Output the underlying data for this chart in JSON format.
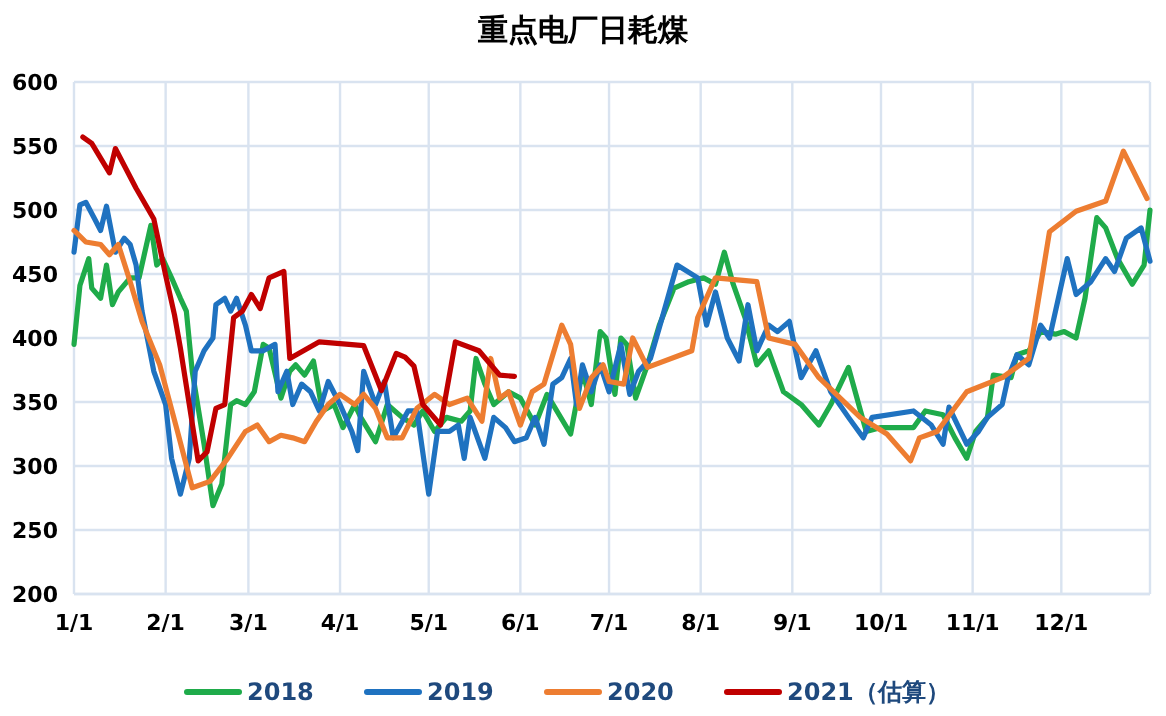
{
  "chart_data": {
    "type": "line",
    "title": "重点电厂日耗煤",
    "ylim": [
      200,
      600
    ],
    "yticks": [
      200,
      250,
      300,
      350,
      400,
      450,
      500,
      550,
      600
    ],
    "xlim": [
      "--01-01",
      "--12-31"
    ],
    "xticks": [
      {
        "value": "--01-01",
        "label": "1/1"
      },
      {
        "value": "--02-01",
        "label": "2/1"
      },
      {
        "value": "--03-01",
        "label": "3/1"
      },
      {
        "value": "--04-01",
        "label": "4/1"
      },
      {
        "value": "--05-01",
        "label": "5/1"
      },
      {
        "value": "--06-01",
        "label": "6/1"
      },
      {
        "value": "--07-01",
        "label": "7/1"
      },
      {
        "value": "--08-01",
        "label": "8/1"
      },
      {
        "value": "--09-01",
        "label": "9/1"
      },
      {
        "value": "--10-01",
        "label": "10/1"
      },
      {
        "value": "--11-01",
        "label": "11/1"
      },
      {
        "value": "--12-01",
        "label": "12/1"
      }
    ],
    "grid": true,
    "legend": "bottom",
    "series": [
      {
        "name": "2018",
        "color": "#1fab4a",
        "x": [
          "--01-01",
          "--01-03",
          "--01-06",
          "--01-07",
          "--01-10",
          "--01-12",
          "--01-14",
          "--01-16",
          "--01-20",
          "--01-23",
          "--01-27",
          "--01-29",
          "--01-31",
          "--02-03",
          "--02-06",
          "--02-08",
          "--02-10",
          "--02-14",
          "--02-17",
          "--02-20",
          "--02-23",
          "--02-25",
          "--02-28",
          "--03-03",
          "--03-06",
          "--03-08",
          "--03-12",
          "--03-15",
          "--03-17",
          "--03-20",
          "--03-23",
          "--03-26",
          "--03-30",
          "--04-02",
          "--04-06",
          "--04-08",
          "--04-13",
          "--04-17",
          "--04-22",
          "--04-26",
          "--04-29",
          "--05-03",
          "--05-07",
          "--05-12",
          "--05-15",
          "--05-17",
          "--05-20",
          "--05-23",
          "--05-28",
          "--06-01",
          "--06-06",
          "--06-10",
          "--06-18",
          "--06-22",
          "--06-25",
          "--06-28",
          "--06-30",
          "--07-03",
          "--07-05",
          "--07-07",
          "--07-10",
          "--07-14",
          "--07-18",
          "--07-23",
          "--07-28",
          "--08-02",
          "--08-06",
          "--08-09",
          "--08-12",
          "--08-16",
          "--08-20",
          "--08-24",
          "--08-29",
          "--09-04",
          "--09-10",
          "--09-14",
          "--09-20",
          "--09-26",
          "--10-01",
          "--10-12",
          "--10-16",
          "--10-22",
          "--10-26",
          "--10-30",
          "--11-02",
          "--11-06",
          "--11-08",
          "--11-14",
          "--11-16",
          "--11-20",
          "--11-24",
          "--11-29",
          "--12-02",
          "--12-06",
          "--12-09",
          "--12-13",
          "--12-16",
          "--12-20",
          "--12-25",
          "--12-29",
          "--12-31"
        ],
        "values": [
          395,
          441,
          462,
          439,
          431,
          457,
          426,
          436,
          447,
          447,
          488,
          457,
          462,
          447,
          431,
          421,
          374,
          317,
          269,
          286,
          348,
          351,
          348,
          358,
          395,
          392,
          353,
          374,
          379,
          371,
          382,
          343,
          348,
          330,
          348,
          338,
          319,
          348,
          338,
          332,
          343,
          327,
          338,
          335,
          343,
          384,
          364,
          348,
          358,
          353,
          332,
          356,
          325,
          374,
          348,
          405,
          400,
          356,
          400,
          395,
          353,
          379,
          410,
          439,
          444,
          447,
          442,
          467,
          442,
          416,
          379,
          390,
          358,
          348,
          332,
          348,
          377,
          327,
          330,
          330,
          343,
          340,
          322,
          306,
          327,
          338,
          371,
          369,
          387,
          390,
          405,
          403,
          405,
          400,
          431,
          494,
          486,
          462,
          442,
          457,
          500
        ]
      },
      {
        "name": "2019",
        "color": "#1f72c0",
        "x": [
          "--01-01",
          "--01-03",
          "--01-05",
          "--01-08",
          "--01-10",
          "--01-12",
          "--01-15",
          "--01-18",
          "--01-20",
          "--01-22",
          "--01-24",
          "--01-28",
          "--02-01",
          "--02-03",
          "--02-06",
          "--02-09",
          "--02-11",
          "--02-14",
          "--02-17",
          "--02-18",
          "--02-21",
          "--02-23",
          "--02-25",
          "--02-28",
          "--03-02",
          "--03-06",
          "--03-10",
          "--03-11",
          "--03-14",
          "--03-16",
          "--03-19",
          "--03-22",
          "--03-25",
          "--03-28",
          "--04-01",
          "--04-05",
          "--04-07",
          "--04-09",
          "--04-13",
          "--04-16",
          "--04-19",
          "--04-24",
          "--04-27",
          "--05-01",
          "--05-04",
          "--05-08",
          "--05-11",
          "--05-13",
          "--05-15",
          "--05-20",
          "--05-23",
          "--05-27",
          "--05-30",
          "--06-03",
          "--06-06",
          "--06-09",
          "--06-12",
          "--06-15",
          "--06-18",
          "--06-20",
          "--06-22",
          "--06-25",
          "--06-28",
          "--07-01",
          "--07-05",
          "--07-08",
          "--07-11",
          "--07-15",
          "--07-19",
          "--07-24",
          "--07-31",
          "--08-03",
          "--08-06",
          "--08-10",
          "--08-14",
          "--08-17",
          "--08-20",
          "--08-24",
          "--08-27",
          "--08-31",
          "--09-04",
          "--09-09",
          "--09-14",
          "--09-20",
          "--09-25",
          "--09-28",
          "--10-12",
          "--10-18",
          "--10-22",
          "--10-24",
          "--10-30",
          "--11-03",
          "--11-06",
          "--11-11",
          "--11-13",
          "--11-16",
          "--11-20",
          "--11-24",
          "--11-27",
          "--12-03",
          "--12-06",
          "--12-11",
          "--12-16",
          "--12-19",
          "--12-23",
          "--12-28",
          "--12-31"
        ],
        "values": [
          467,
          504,
          506,
          493,
          484,
          503,
          467,
          478,
          473,
          457,
          421,
          374,
          348,
          306,
          278,
          306,
          374,
          390,
          400,
          426,
          431,
          421,
          431,
          410,
          390,
          390,
          395,
          358,
          374,
          348,
          364,
          358,
          343,
          366,
          348,
          327,
          312,
          374,
          348,
          366,
          322,
          343,
          343,
          278,
          327,
          327,
          332,
          306,
          338,
          306,
          338,
          330,
          319,
          322,
          338,
          317,
          364,
          369,
          384,
          348,
          379,
          358,
          379,
          358,
          395,
          356,
          374,
          384,
          416,
          457,
          447,
          410,
          436,
          400,
          382,
          426,
          390,
          410,
          405,
          413,
          369,
          390,
          358,
          338,
          322,
          338,
          343,
          332,
          317,
          346,
          317,
          327,
          338,
          348,
          369,
          387,
          379,
          410,
          400,
          462,
          434,
          444,
          462,
          452,
          478,
          486,
          460
        ]
      },
      {
        "name": "2020",
        "color": "#ed7d31",
        "x": [
          "--01-01",
          "--01-05",
          "--01-10",
          "--01-13",
          "--01-16",
          "--01-20",
          "--01-24",
          "--01-30",
          "--02-05",
          "--02-10",
          "--02-16",
          "--02-22",
          "--02-28",
          "--03-04",
          "--03-08",
          "--03-12",
          "--03-16",
          "--03-20",
          "--03-24",
          "--03-28",
          "--04-01",
          "--04-06",
          "--04-09",
          "--04-13",
          "--04-17",
          "--04-22",
          "--04-27",
          "--05-03",
          "--05-08",
          "--05-14",
          "--05-19",
          "--05-22",
          "--05-25",
          "--05-28",
          "--06-01",
          "--06-05",
          "--06-09",
          "--06-15",
          "--06-18",
          "--06-21",
          "--06-25",
          "--06-29",
          "--07-01",
          "--07-06",
          "--07-09",
          "--07-14",
          "--07-29",
          "--07-31",
          "--08-06",
          "--08-20",
          "--08-24",
          "--09-02",
          "--09-10",
          "--09-24",
          "--10-03",
          "--10-11",
          "--10-14",
          "--10-20",
          "--10-30",
          "--11-11",
          "--11-20",
          "--11-27",
          "--12-06",
          "--12-16",
          "--12-22",
          "--12-30"
        ],
        "values": [
          484,
          475,
          473,
          465,
          473,
          444,
          413,
          379,
          327,
          283,
          288,
          306,
          327,
          332,
          319,
          324,
          322,
          319,
          335,
          348,
          356,
          348,
          356,
          345,
          322,
          322,
          345,
          356,
          348,
          353,
          335,
          384,
          353,
          358,
          332,
          358,
          364,
          410,
          395,
          345,
          369,
          379,
          366,
          364,
          400,
          377,
          390,
          416,
          447,
          444,
          400,
          395,
          369,
          338,
          325,
          304,
          322,
          327,
          358,
          369,
          384,
          483,
          499,
          507,
          546,
          509
        ]
      },
      {
        "name": "2021（估算）",
        "color": "#c00000",
        "x": [
          "--01-04",
          "--01-07",
          "--01-13",
          "--01-15",
          "--01-22",
          "--01-28",
          "--02-01",
          "--02-04",
          "--02-06",
          "--02-09",
          "--02-12",
          "--02-15",
          "--02-18",
          "--02-21",
          "--02-24",
          "--02-27",
          "--03-02",
          "--03-05",
          "--03-08",
          "--03-13",
          "--03-15",
          "--03-25",
          "--04-09",
          "--04-15",
          "--04-20",
          "--04-23",
          "--04-26",
          "--04-29",
          "--05-05",
          "--05-10",
          "--05-18",
          "--05-25",
          "--05-30"
        ],
        "values": [
          557,
          552,
          529,
          548,
          517,
          493,
          449,
          418,
          392,
          348,
          304,
          311,
          345,
          348,
          416,
          421,
          434,
          423,
          447,
          452,
          384,
          397,
          394,
          359,
          388,
          385,
          378,
          348,
          332,
          397,
          390,
          371,
          370
        ]
      }
    ]
  }
}
